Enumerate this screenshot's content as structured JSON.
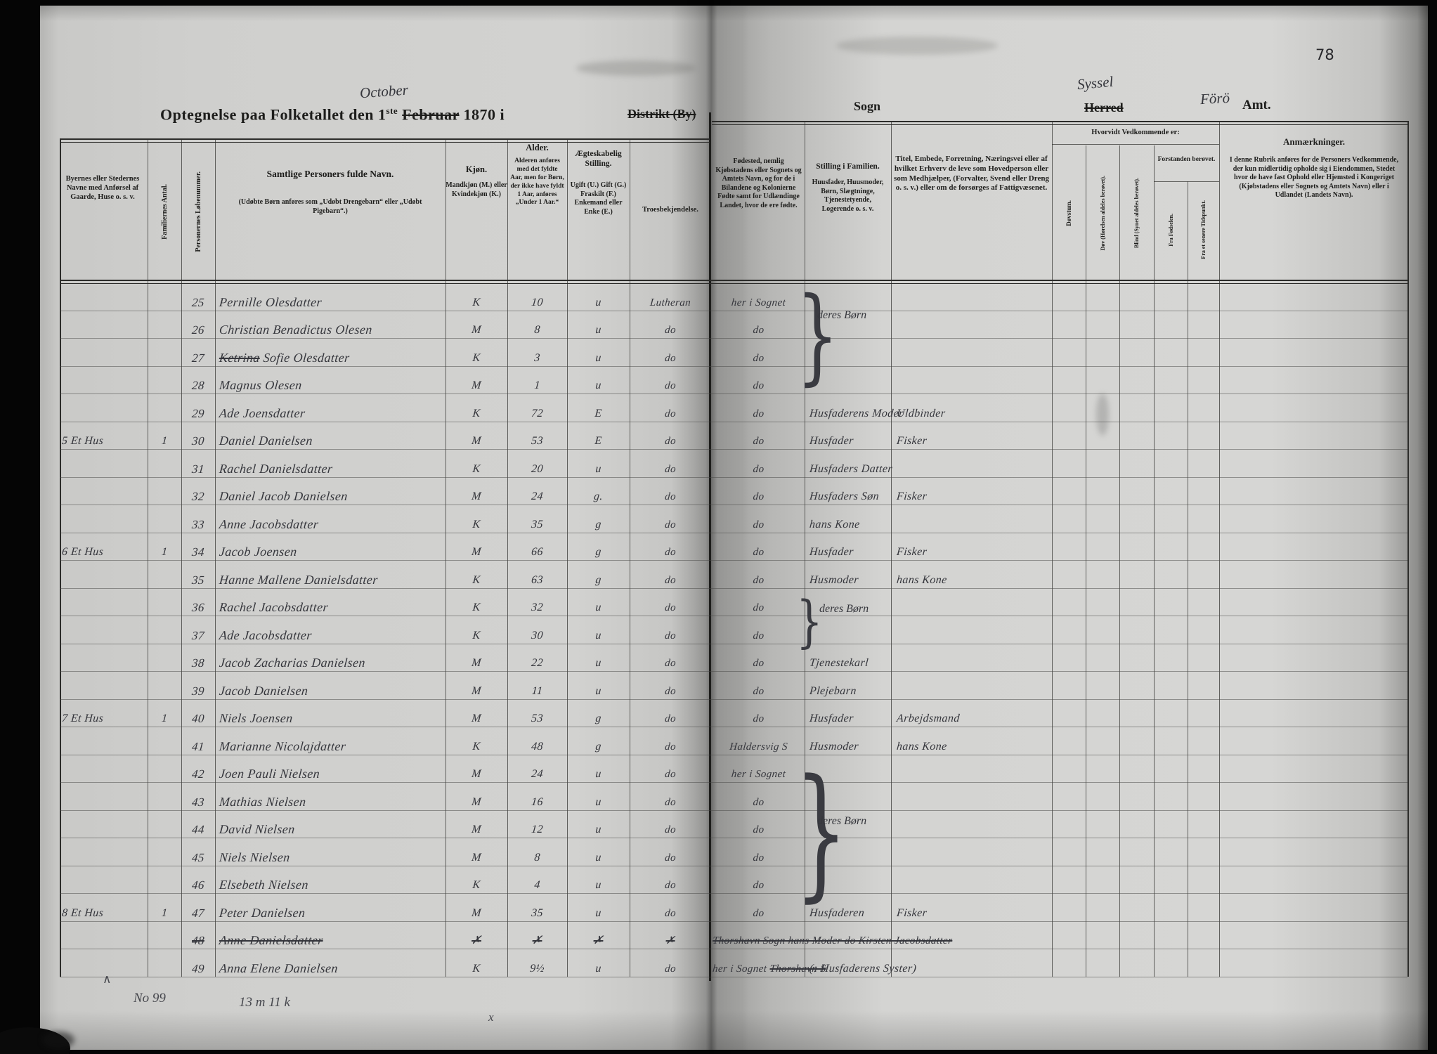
{
  "page_number": "78",
  "title": {
    "main_pre": "Optegnelse paa Folketallet den 1",
    "sup": "ste",
    "month_struck": "Februar",
    "month_hand": "October",
    "main_post": " 1870 i",
    "distrikt_struck": "Distrikt (By)",
    "sogn": "Sogn",
    "herred_struck": "Herred",
    "herred_hand": "Syssel",
    "amt_hand": "Förö",
    "amt": "Amt."
  },
  "headers": {
    "bosted": "Byernes eller Stedernes Navne med Anførsel af Gaarde, Huse o. s. v.",
    "fam": "Familiernes Antal.",
    "nr": "Personernes Løbenummer.",
    "navn_title": "Samtlige Personers fulde Navn.",
    "navn_sub": "(Udøbte Børn anføres som „Udøbt Drengebarn“ eller „Udøbt Pigebarn“.)",
    "kjon_title": "Kjøn.",
    "kjon_sub": "Mandkjøn (M.) eller Kvindekjøn (K.)",
    "alder_title": "Alder.",
    "alder_sub": "Alderen anføres med det fyldte Aar, men for Børn, der ikke have fyldt 1 Aar, anføres „Under 1 Aar.“",
    "aegt_title": "Ægteskabelig Stilling.",
    "aegt_sub": "Ugift (U.) Gift (G.) Fraskilt (F.) Enkemand eller Enke (E.)",
    "tro": "Troesbekjendelse.",
    "fodested": "Fødested, nemlig Kjøbstadens eller Sognets og Amtets Navn, og for de i Bilandene og Kolonierne Fødte samt for Udlændinge Landet, hvor de ere fødte.",
    "stilling_title": "Stilling i Familien.",
    "stilling_sub": "Huusfader, Huusmoder, Børn, Slægtninge, Tjenestetyende, Logerende o. s. v.",
    "titel": "Titel, Embede, Forretning, Næringsvei eller af hvilket Erhverv de leve som Hovedperson eller som Medhjælper, (Forvalter, Svend eller Dreng o. s. v.) eller om de forsørges af Fattigvæsenet.",
    "hvorvidt": "Hvorvidt Vedkommende er:",
    "dovstum": "Døvstum.",
    "dov": "Døv (Hørelsen aldeles berøvet).",
    "blind": "Blind (Synet aldeles berøvet).",
    "forstanden": "Forstanden berøvet.",
    "fra_fodselen": "Fra Fødselen.",
    "fra_senere": "Fra et senere Tidspunkt.",
    "anm_title": "Anmærkninger.",
    "anm_body": "I denne Rubrik anføres for de Personers Vedkommende, der kun midlertidig opholde sig i Eiendommen, Stedet hvor de have fast Ophold eller Hjemsted i Kongeriget (Kjøbstadens eller Sognets og Amtets Navn) eller i Udlandet (Landets Navn)."
  },
  "rows": [
    {
      "nr": "25",
      "navn": "Pernille Olesdatter",
      "kjon": "K",
      "alder": "10",
      "aegt": "u",
      "tro": "Lutheran",
      "fodested": "her i Sognet"
    },
    {
      "nr": "26",
      "navn": "Christian Benadictus Olesen",
      "kjon": "M",
      "alder": "8",
      "aegt": "u",
      "tro": "do",
      "fodested": "do"
    },
    {
      "nr": "27",
      "navn": "~~Ketrina~~ Sofie Olesdatter",
      "kjon": "K",
      "alder": "3",
      "aegt": "u",
      "tro": "do",
      "fodested": "do"
    },
    {
      "nr": "28",
      "navn": "Magnus Olesen",
      "kjon": "M",
      "alder": "1",
      "aegt": "u",
      "tro": "do",
      "fodested": "do"
    },
    {
      "nr": "29",
      "navn": "Ade Joensdatter",
      "kjon": "K",
      "alder": "72",
      "aegt": "E",
      "tro": "do",
      "fodested": "do",
      "stilling": "Husfaderens Moder",
      "erhverv": "Uldbinder"
    },
    {
      "bosted": "5 Et Hus",
      "fam": "1",
      "nr": "30",
      "navn": "Daniel Danielsen",
      "kjon": "M",
      "alder": "53",
      "aegt": "E",
      "tro": "do",
      "fodested": "do",
      "stilling": "Husfader",
      "erhverv": "Fisker"
    },
    {
      "nr": "31",
      "navn": "Rachel Danielsdatter",
      "kjon": "K",
      "alder": "20",
      "aegt": "u",
      "tro": "do",
      "fodested": "do",
      "stilling": "Husfaders Datter"
    },
    {
      "nr": "32",
      "navn": "Daniel Jacob Danielsen",
      "kjon": "M",
      "alder": "24",
      "aegt": "g.",
      "tro": "do",
      "fodested": "do",
      "stilling": "Husfaders Søn",
      "erhverv": "Fisker"
    },
    {
      "nr": "33",
      "navn": "Anne Jacobsdatter",
      "kjon": "K",
      "alder": "35",
      "aegt": "g",
      "tro": "do",
      "fodested": "do",
      "stilling": "hans Kone"
    },
    {
      "bosted": "6 Et Hus",
      "fam": "1",
      "nr": "34",
      "navn": "Jacob Joensen",
      "kjon": "M",
      "alder": "66",
      "aegt": "g",
      "tro": "do",
      "fodested": "do",
      "stilling": "Husfader",
      "erhverv": "Fisker"
    },
    {
      "nr": "35",
      "navn": "Hanne Mallene Danielsdatter",
      "kjon": "K",
      "alder": "63",
      "aegt": "g",
      "tro": "do",
      "fodested": "do",
      "stilling": "Husmoder",
      "erhverv": "hans Kone"
    },
    {
      "nr": "36",
      "navn": "Rachel Jacobsdatter",
      "kjon": "K",
      "alder": "32",
      "aegt": "u",
      "tro": "do",
      "fodested": "do"
    },
    {
      "nr": "37",
      "navn": "Ade Jacobsdatter",
      "kjon": "K",
      "alder": "30",
      "aegt": "u",
      "tro": "do",
      "fodested": "do"
    },
    {
      "nr": "38",
      "navn": "Jacob Zacharias Danielsen",
      "kjon": "M",
      "alder": "22",
      "aegt": "u",
      "tro": "do",
      "fodested": "do",
      "stilling": "Tjenestekarl"
    },
    {
      "nr": "39",
      "navn": "Jacob Danielsen",
      "kjon": "M",
      "alder": "11",
      "aegt": "u",
      "tro": "do",
      "fodested": "do",
      "stilling": "Plejebarn"
    },
    {
      "bosted": "7 Et Hus",
      "fam": "1",
      "nr": "40",
      "navn": "Niels Joensen",
      "kjon": "M",
      "alder": "53",
      "aegt": "g",
      "tro": "do",
      "fodested": "do",
      "stilling": "Husfader",
      "erhverv": "Arbejdsmand"
    },
    {
      "nr": "41",
      "navn": "Marianne Nicolajdatter",
      "kjon": "K",
      "alder": "48",
      "aegt": "g",
      "tro": "do",
      "fodested": "Haldersvig S",
      "stilling": "Husmoder",
      "erhverv": "hans Kone"
    },
    {
      "nr": "42",
      "navn": "Joen Pauli Nielsen",
      "kjon": "M",
      "alder": "24",
      "aegt": "u",
      "tro": "do",
      "fodested": "her i Sognet"
    },
    {
      "nr": "43",
      "navn": "Mathias Nielsen",
      "kjon": "M",
      "alder": "16",
      "aegt": "u",
      "tro": "do",
      "fodested": "do"
    },
    {
      "nr": "44",
      "navn": "David Nielsen",
      "kjon": "M",
      "alder": "12",
      "aegt": "u",
      "tro": "do",
      "fodested": "do"
    },
    {
      "nr": "45",
      "navn": "Niels Nielsen",
      "kjon": "M",
      "alder": "8",
      "aegt": "u",
      "tro": "do",
      "fodested": "do"
    },
    {
      "nr": "46",
      "navn": "Elsebeth Nielsen",
      "kjon": "K",
      "alder": "4",
      "aegt": "u",
      "tro": "do",
      "fodested": "do"
    },
    {
      "bosted": "8 Et Hus",
      "fam": "1",
      "nr": "47",
      "navn": "Peter Danielsen",
      "kjon": "M",
      "alder": "35",
      "aegt": "u",
      "tro": "do",
      "fodested": "do",
      "stilling": "Husfaderen",
      "erhverv": "Fisker"
    },
    {
      "nr": "~~48~~",
      "navn": "~~Anne Danielsdatter~~",
      "kjon": "~~✗~~",
      "alder": "~~✗~~",
      "aegt": "~~✗~~",
      "tro": "~~✗~~",
      "fodested": "~~Thorshavn Sogn  hans Moder   do   Kirsten Jacobsdatter~~"
    },
    {
      "nr": "49",
      "navn": "Anna Elene Danielsen",
      "kjon": "K",
      "alder": "9½",
      "aegt": "u",
      "tro": "do",
      "fodested": "her i Sognet ~~Thorshavn S~~",
      "stilling": "(: Husfaderens Syster)"
    }
  ],
  "braces": [
    {
      "label": "deres Børn"
    },
    {
      "label": "deres Børn"
    },
    {
      "label": "deres Børn"
    }
  ],
  "notes": {
    "caret": "∧",
    "count": "No 99",
    "tally": "13 m 11 k",
    "cross": "x"
  }
}
